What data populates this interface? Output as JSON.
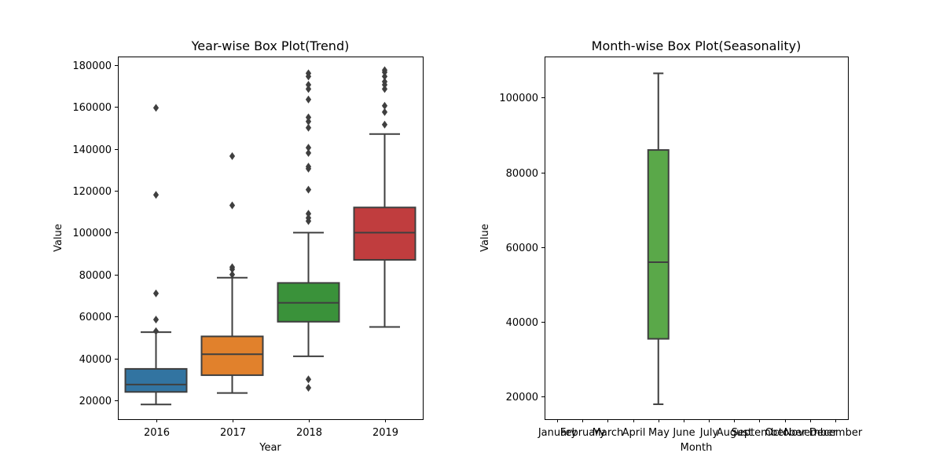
{
  "chart_data": [
    {
      "type": "box",
      "title": "Year-wise Box Plot(Trend)",
      "xlabel": "Year",
      "ylabel": "Value",
      "ylim": [
        11000,
        184000
      ],
      "yticks": [
        20000,
        40000,
        60000,
        80000,
        100000,
        120000,
        140000,
        160000,
        180000
      ],
      "categories": [
        "2016",
        "2017",
        "2018",
        "2019"
      ],
      "boxes": [
        {
          "category": "2016",
          "color": "#3274a1",
          "whislo": 18000,
          "q1": 24000,
          "med": 27500,
          "q3": 35000,
          "whishi": 52500,
          "fliers": [
            53000,
            58500,
            71000,
            118000,
            159500
          ]
        },
        {
          "category": "2017",
          "color": "#e1812c",
          "whislo": 23500,
          "q1": 32000,
          "med": 42000,
          "q3": 50500,
          "whishi": 78500,
          "fliers": [
            80000,
            82500,
            83500,
            113000,
            136500
          ]
        },
        {
          "category": "2018",
          "color": "#3a923a",
          "whislo": 41000,
          "q1": 57500,
          "med": 66500,
          "q3": 76000,
          "whishi": 100000,
          "fliers": [
            26000,
            30000,
            105500,
            107000,
            109000,
            120500,
            130500,
            131500,
            138000,
            140500,
            150000,
            153000,
            155000,
            163500,
            168500,
            170500,
            174500,
            176000
          ]
        },
        {
          "category": "2019",
          "color": "#c03d3e",
          "whislo": 55000,
          "q1": 87000,
          "med": 100000,
          "q3": 112000,
          "whishi": 147000,
          "fliers": [
            151500,
            157500,
            160500,
            168500,
            170500,
            172000,
            174500,
            176500,
            177500
          ]
        }
      ]
    },
    {
      "type": "box",
      "title": "Month-wise Box Plot(Seasonality)",
      "xlabel": "Month",
      "ylabel": "Value",
      "ylim": [
        14000,
        111000
      ],
      "yticks": [
        20000,
        40000,
        60000,
        80000,
        100000
      ],
      "categories": [
        "January",
        "February",
        "March",
        "April",
        "May",
        "June",
        "July",
        "August",
        "September",
        "October",
        "November",
        "December"
      ],
      "boxes": [
        {
          "category": "May",
          "color": "#5aa849",
          "whislo": 18000,
          "q1": 35500,
          "med": 56000,
          "q3": 86000,
          "whishi": 106500,
          "fliers": []
        }
      ]
    }
  ]
}
